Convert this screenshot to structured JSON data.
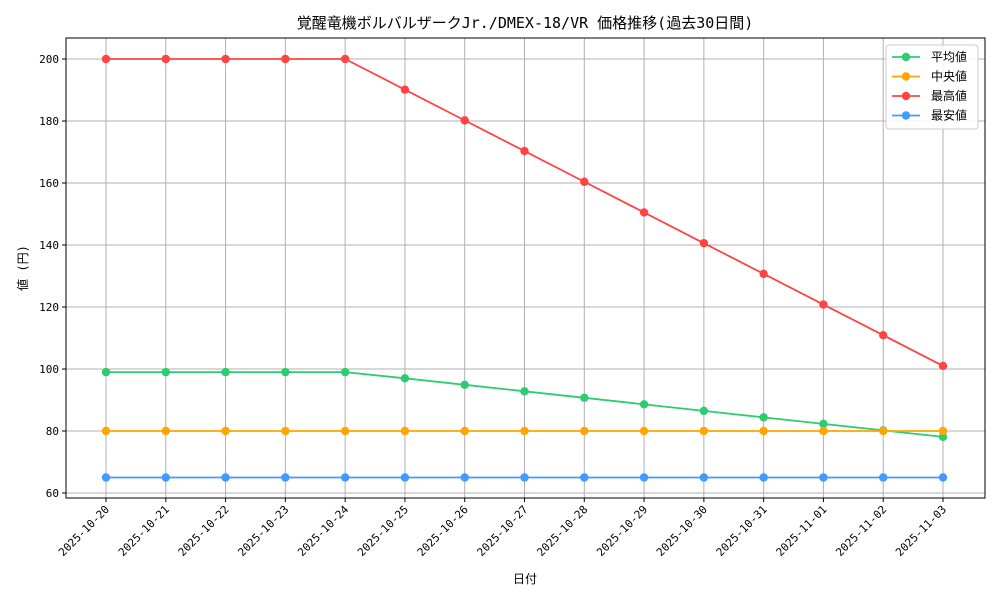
{
  "chart_data": {
    "type": "line",
    "title": "覚醒竜機ボルバルザークJr./DMEX-18/VR 価格推移(過去30日間)",
    "xlabel": "日付",
    "ylabel": "値 (円)",
    "ylim": [
      58,
      206
    ],
    "yticks": [
      60,
      80,
      100,
      120,
      140,
      160,
      180,
      200
    ],
    "grid": true,
    "legend_position": "top-right",
    "x": [
      "2025-10-20",
      "2025-10-21",
      "2025-10-22",
      "2025-10-23",
      "2025-10-24",
      "2025-10-25",
      "2025-10-26",
      "2025-10-27",
      "2025-10-28",
      "2025-10-29",
      "2025-10-30",
      "2025-10-31",
      "2025-11-01",
      "2025-11-02",
      "2025-11-03"
    ],
    "series": [
      {
        "name": "平均値",
        "color": "#2ecc71",
        "values": [
          99,
          99,
          99,
          99,
          99,
          97,
          94.9,
          92.8,
          90.7,
          88.6,
          86.5,
          84.4,
          82.3,
          80.2,
          78.1
        ]
      },
      {
        "name": "中央値",
        "color": "#ffa500",
        "values": [
          80,
          80,
          80,
          80,
          80,
          80,
          80,
          80,
          80,
          80,
          80,
          80,
          80,
          80,
          80
        ]
      },
      {
        "name": "最高値",
        "color": "#ff4444",
        "values": [
          200,
          200,
          200,
          200,
          200,
          190.1,
          180.2,
          170.3,
          160.4,
          150.5,
          140.6,
          130.7,
          120.8,
          110.9,
          101
        ]
      },
      {
        "name": "最安値",
        "color": "#4499ff",
        "values": [
          65,
          65,
          65,
          65,
          65,
          65,
          65,
          65,
          65,
          65,
          65,
          65,
          65,
          65,
          65
        ]
      }
    ]
  }
}
